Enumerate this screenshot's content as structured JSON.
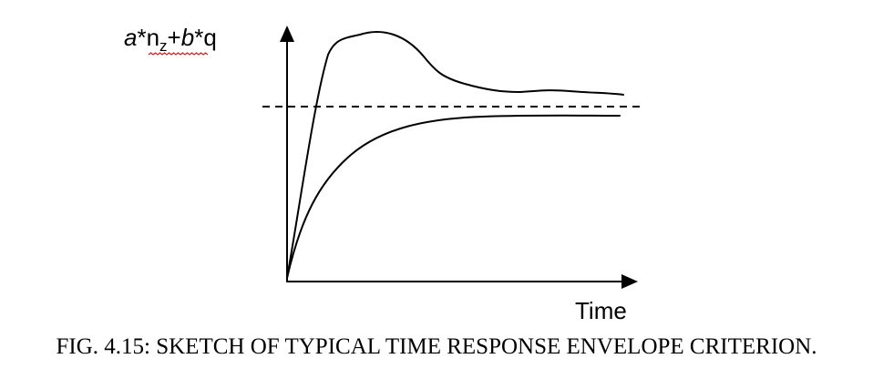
{
  "diagram": {
    "y_axis_label": {
      "part1_italic": "a",
      "part2": "*n",
      "subscript": "z",
      "part3": "+",
      "part4_italic": "b",
      "part5": "*q"
    },
    "x_axis_label": "Time",
    "caption": "FIG. 4.15: SKETCH OF TYPICAL TIME RESPONSE ENVELOPE CRITERION.",
    "spellcheck_underline_color": "#d62020"
  }
}
